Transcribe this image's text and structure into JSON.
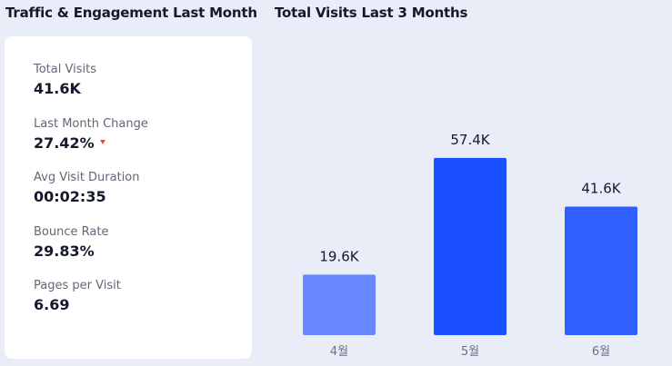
{
  "left_panel": {
    "title": "Traffic & Engagement Last Month",
    "stats": [
      {
        "label": "Total Visits",
        "value": "41.6K",
        "trend": null
      },
      {
        "label": "Last Month Change",
        "value": "27.42%",
        "trend": "down"
      },
      {
        "label": "Avg Visit Duration",
        "value": "00:02:35",
        "trend": null
      },
      {
        "label": "Bounce Rate",
        "value": "29.83%",
        "trend": null
      },
      {
        "label": "Pages per Visit",
        "value": "6.69",
        "trend": null
      }
    ]
  },
  "right_panel": {
    "title": "Total Visits Last 3 Months"
  },
  "colors": {
    "bar_4": "#6888ff",
    "bar_5": "#1a50ff",
    "bar_6": "#2f5ffd",
    "trend_down": "#e5484d"
  },
  "chart_data": {
    "type": "bar",
    "title": "Total Visits Last 3 Months",
    "categories": [
      "4월",
      "5월",
      "6월"
    ],
    "values": [
      19600,
      57400,
      41600
    ],
    "data_labels": [
      "19.6K",
      "57.4K",
      "41.6K"
    ],
    "ylim": [
      0,
      60000
    ],
    "grid": false,
    "legend": "none"
  }
}
